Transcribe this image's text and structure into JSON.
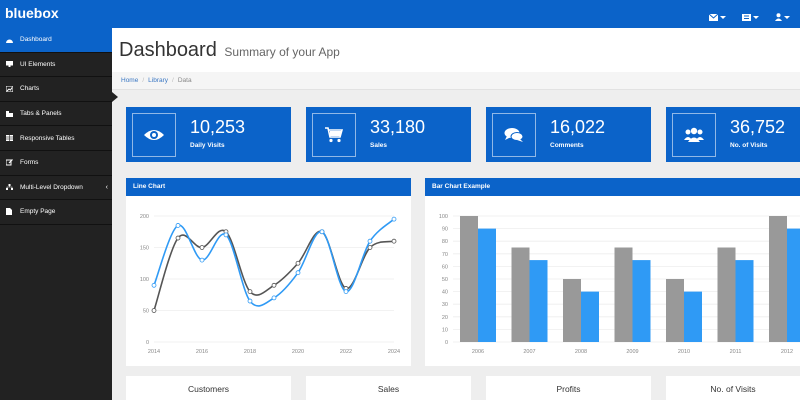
{
  "app": {
    "brand": "bluebox",
    "top_icons": [
      "mail-icon",
      "list-icon",
      "user-icon"
    ]
  },
  "sidebar": {
    "items": [
      {
        "label": "Dashboard",
        "icon": "dashboard-icon",
        "active": true
      },
      {
        "label": "UI Elements",
        "icon": "desktop-icon"
      },
      {
        "label": "Charts",
        "icon": "chart-icon"
      },
      {
        "label": "Tabs & Panels",
        "icon": "tabs-icon"
      },
      {
        "label": "Responsive Tables",
        "icon": "table-icon"
      },
      {
        "label": "Forms",
        "icon": "edit-icon"
      },
      {
        "label": "Multi-Level Dropdown",
        "icon": "sitemap-icon",
        "has_children": true
      },
      {
        "label": "Empty Page",
        "icon": "file-icon"
      }
    ]
  },
  "header": {
    "title": "Dashboard",
    "subtitle": "Summary of your App"
  },
  "breadcrumb": [
    "Home",
    "Library",
    "Data"
  ],
  "stats": [
    {
      "value": "10,253",
      "label": "Daily Visits",
      "icon": "eye-icon"
    },
    {
      "value": "33,180",
      "label": "Sales",
      "icon": "cart-icon"
    },
    {
      "value": "16,022",
      "label": "Comments",
      "icon": "comments-icon"
    },
    {
      "value": "36,752",
      "label": "No. of Visits",
      "icon": "users-icon"
    }
  ],
  "colors": {
    "primary": "#0b63c9",
    "sidebar": "#222222",
    "series_gray": "#999999",
    "series_blue": "#2f9af5",
    "line_dark": "#555555"
  },
  "chart_data": [
    {
      "type": "line",
      "title": "Line Chart",
      "x": [
        2014,
        2015,
        2016,
        2017,
        2018,
        2019,
        2020,
        2021,
        2022,
        2023,
        2024
      ],
      "x_ticks": [
        "2014",
        "2016",
        "2018",
        "2020",
        "2022",
        "2024"
      ],
      "y_ticks": [
        "0",
        "50",
        "100",
        "150",
        "200"
      ],
      "ylim": [
        0,
        200
      ],
      "series": [
        {
          "values": [
            50,
            165,
            150,
            175,
            80,
            90,
            125,
            175,
            85,
            150,
            160
          ]
        },
        {
          "values": [
            90,
            185,
            130,
            170,
            65,
            70,
            110,
            175,
            80,
            160,
            195
          ]
        }
      ]
    },
    {
      "type": "bar",
      "title": "Bar Chart Example",
      "categories": [
        "2006",
        "2007",
        "2008",
        "2009",
        "2010",
        "2011",
        "2012"
      ],
      "y_ticks": [
        "0",
        "10",
        "20",
        "30",
        "40",
        "50",
        "60",
        "70",
        "80",
        "90",
        "100"
      ],
      "ylim": [
        0,
        100
      ],
      "series": [
        {
          "values": [
            100,
            75,
            50,
            75,
            50,
            75,
            100
          ]
        },
        {
          "values": [
            90,
            65,
            40,
            65,
            40,
            65,
            90
          ]
        }
      ]
    }
  ],
  "bottom_cards": [
    "Customers",
    "Sales",
    "Profits",
    "No. of Visits"
  ]
}
